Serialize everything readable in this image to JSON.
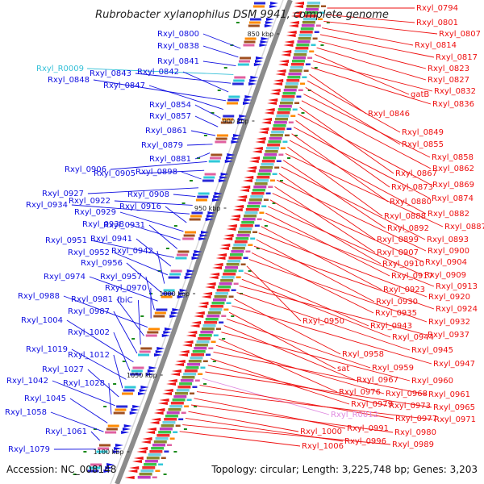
{
  "title": "Rubrobacter xylanophilus DSM 9941, complete genome",
  "accession": "Accession: NC_008148",
  "topology": "Topology: circular; Length: 3,225,748 bp; Genes: 3,203",
  "colors": {
    "forward": "#1010e0",
    "reverse": "#ee1010",
    "rna_cyan": "#35c0d8",
    "rna_pink": "#e08ae0",
    "backbone": "#8c8c8c"
  },
  "ticks": [
    "850 kbp",
    "900 kbp",
    "950 kbp",
    "1000 kbp",
    "1050 kbp",
    "1100 kbp"
  ],
  "left_labels": [
    {
      "text": "Rxyl_0800"
    },
    {
      "text": "Rxyl_0838"
    },
    {
      "text": "Rxyl_0841"
    },
    {
      "text": "Rxyl_R0009",
      "kind": "rna"
    },
    {
      "text": "Rxyl_0843"
    },
    {
      "text": "Rxyl_0842"
    },
    {
      "text": "Rxyl_0848"
    },
    {
      "text": "Rxyl_0847"
    },
    {
      "text": "Rxyl_0854"
    },
    {
      "text": "Rxyl_0857"
    },
    {
      "text": "Rxyl_0861"
    },
    {
      "text": "Rxyl_0879"
    },
    {
      "text": "Rxyl_0881"
    },
    {
      "text": "Rxyl_0906"
    },
    {
      "text": "Rxyl_0905"
    },
    {
      "text": "Rxyl_0898"
    },
    {
      "text": "Rxyl_0927"
    },
    {
      "text": "Rxyl_0908"
    },
    {
      "text": "Rxyl_0922"
    },
    {
      "text": "Rxyl_0934"
    },
    {
      "text": "Rxyl_0916"
    },
    {
      "text": "Rxyl_0929"
    },
    {
      "text": "Rxyl_0938"
    },
    {
      "text": "Rxyl_0931"
    },
    {
      "text": "Rxyl_0951"
    },
    {
      "text": "Rxyl_0941"
    },
    {
      "text": "Rxyl_0952"
    },
    {
      "text": "Rxyl_0942"
    },
    {
      "text": "Rxyl_0956"
    },
    {
      "text": "Rxyl_0974"
    },
    {
      "text": "Rxyl_0957"
    },
    {
      "text": "Rxyl_0970"
    },
    {
      "text": "Rxyl_0988"
    },
    {
      "text": "Rxyl_0981"
    },
    {
      "text": "fbiC"
    },
    {
      "text": "Rxyl_0987"
    },
    {
      "text": "Rxyl_1004"
    },
    {
      "text": "Rxyl_1002"
    },
    {
      "text": "Rxyl_1019"
    },
    {
      "text": "Rxyl_1012"
    },
    {
      "text": "Rxyl_1027"
    },
    {
      "text": "Rxyl_1042"
    },
    {
      "text": "Rxyl_1028"
    },
    {
      "text": "Rxyl_1045"
    },
    {
      "text": "Rxyl_1058"
    },
    {
      "text": "Rxyl_1061"
    },
    {
      "text": "Rxyl_1079"
    }
  ],
  "right_labels": [
    {
      "text": "Rxyl_0794"
    },
    {
      "text": "Rxyl_0801"
    },
    {
      "text": "Rxyl_0807"
    },
    {
      "text": "Rxyl_0814"
    },
    {
      "text": "Rxyl_0817"
    },
    {
      "text": "Rxyl_0823"
    },
    {
      "text": "Rxyl_0827"
    },
    {
      "text": "gatB"
    },
    {
      "text": "Rxyl_0832"
    },
    {
      "text": "Rxyl_0836"
    },
    {
      "text": "Rxyl_0846"
    },
    {
      "text": "Rxyl_0849"
    },
    {
      "text": "Rxyl_0855"
    },
    {
      "text": "Rxyl_0858"
    },
    {
      "text": "Rxyl_0862"
    },
    {
      "text": "Rxyl_0867"
    },
    {
      "text": "Rxyl_0869"
    },
    {
      "text": "Rxyl_0873"
    },
    {
      "text": "Rxyl_0874"
    },
    {
      "text": "Rxyl_0880"
    },
    {
      "text": "Rxyl_0882"
    },
    {
      "text": "Rxyl_0888"
    },
    {
      "text": "Rxyl_0887"
    },
    {
      "text": "Rxyl_0892"
    },
    {
      "text": "Rxyl_0893"
    },
    {
      "text": "Rxyl_0899"
    },
    {
      "text": "Rxyl_0900"
    },
    {
      "text": "Rxyl_0907"
    },
    {
      "text": "Rxyl_0904"
    },
    {
      "text": "Rxyl_0910"
    },
    {
      "text": "Rxyl_0909"
    },
    {
      "text": "Rxyl_0917"
    },
    {
      "text": "Rxyl_0913"
    },
    {
      "text": "Rxyl_0923"
    },
    {
      "text": "Rxyl_0920"
    },
    {
      "text": "Rxyl_0930"
    },
    {
      "text": "Rxyl_0924"
    },
    {
      "text": "Rxyl_0935"
    },
    {
      "text": "Rxyl_0932"
    },
    {
      "text": "Rxyl_0950"
    },
    {
      "text": "Rxyl_0943"
    },
    {
      "text": "Rxyl_0944"
    },
    {
      "text": "Rxyl_0937"
    },
    {
      "text": "Rxyl_0945"
    },
    {
      "text": "Rxyl_0958"
    },
    {
      "text": "Rxyl_0947"
    },
    {
      "text": "sat"
    },
    {
      "text": "Rxyl_0959"
    },
    {
      "text": "Rxyl_0967"
    },
    {
      "text": "Rxyl_0960"
    },
    {
      "text": "Rxyl_0976"
    },
    {
      "text": "Rxyl_0968"
    },
    {
      "text": "Rxyl_0961"
    },
    {
      "text": "Rxyl_0979"
    },
    {
      "text": "Rxyl_0973"
    },
    {
      "text": "Rxyl_0965"
    },
    {
      "text": "Rxyl_R0012",
      "kind": "rna"
    },
    {
      "text": "Rxyl_0977"
    },
    {
      "text": "Rxyl_0971"
    },
    {
      "text": "Rxyl_0991"
    },
    {
      "text": "Rxyl_0980"
    },
    {
      "text": "Rxyl_1000"
    },
    {
      "text": "Rxyl_0996"
    },
    {
      "text": "Rxyl_0989"
    },
    {
      "text": "Rxyl_1006"
    }
  ]
}
